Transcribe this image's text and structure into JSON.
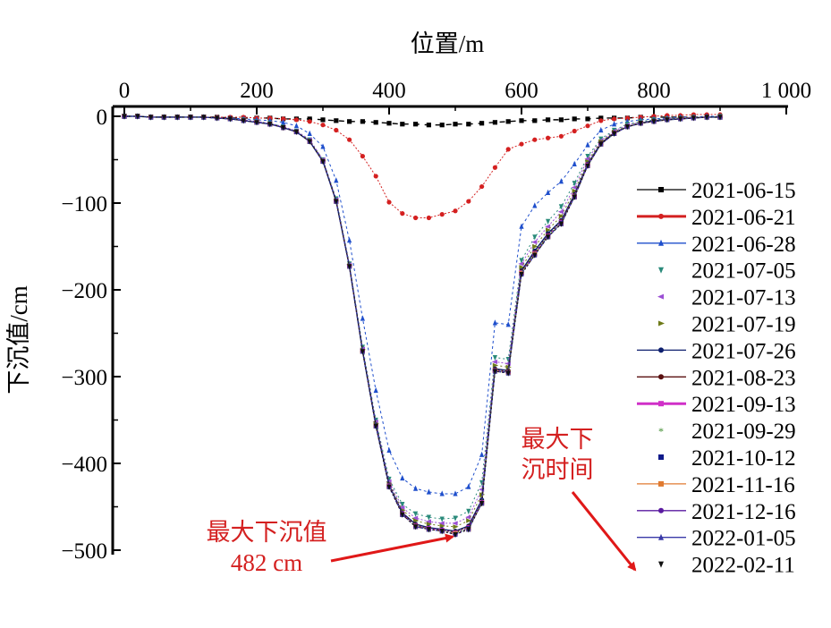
{
  "chart_data": {
    "type": "line",
    "title": "",
    "xlabel": "位置/m",
    "ylabel": "下沉值/cm",
    "xlim": [
      0,
      1000
    ],
    "ylim": [
      -500,
      0
    ],
    "xticks": [
      0,
      200,
      400,
      600,
      800,
      1000
    ],
    "xtick_labels": [
      "0",
      "200",
      "400",
      "600",
      "800",
      "1 000"
    ],
    "yticks": [
      0,
      -100,
      -200,
      -300,
      -400,
      -500
    ],
    "ytick_labels": [
      "0",
      "−100",
      "−200",
      "−300",
      "−400",
      "−500"
    ],
    "x_axis_position": "top",
    "grid": false,
    "legend_position": "right",
    "x": [
      0,
      20,
      40,
      60,
      80,
      100,
      120,
      140,
      160,
      180,
      200,
      220,
      240,
      260,
      280,
      300,
      320,
      340,
      360,
      380,
      400,
      420,
      440,
      460,
      480,
      500,
      520,
      540,
      560,
      580,
      600,
      620,
      640,
      660,
      680,
      700,
      720,
      740,
      760,
      780,
      800,
      820,
      840,
      860,
      880,
      900
    ],
    "series": [
      {
        "name": "2021-06-15",
        "color": "#000000",
        "marker": "square",
        "line": true,
        "values": [
          0,
          0,
          -1,
          -1,
          -1,
          -1,
          -1,
          -1,
          -2,
          -2,
          -2,
          -2,
          -3,
          -3,
          -3,
          -4,
          -5,
          -6,
          -6,
          -7,
          -8,
          -9,
          -9,
          -10,
          -10,
          -9,
          -9,
          -8,
          -7,
          -6,
          -5,
          -5,
          -4,
          -4,
          -3,
          -3,
          -2,
          -2,
          -2,
          -1,
          -1,
          -1,
          -1,
          -1,
          -1,
          -1
        ]
      },
      {
        "name": "2021-06-21",
        "color": "#d42020",
        "marker": "circle",
        "line": true,
        "values": [
          0,
          0,
          -1,
          -1,
          -1,
          -1,
          -1,
          -1,
          -1,
          -1,
          -2,
          -2,
          -3,
          -4,
          -6,
          -10,
          -16,
          -27,
          -46,
          -69,
          -99,
          -112,
          -117,
          -117,
          -113,
          -109,
          -98,
          -81,
          -59,
          -38,
          -32,
          -27,
          -25,
          -23,
          -17,
          -11,
          -5,
          -3,
          -2,
          -1,
          0,
          1,
          1,
          2,
          2,
          2
        ]
      },
      {
        "name": "2021-06-28",
        "color": "#1f4fcc",
        "marker": "triangle-up",
        "line": true,
        "values": [
          0,
          0,
          -1,
          -1,
          -1,
          -1,
          -1,
          -2,
          -2,
          -3,
          -4,
          -5,
          -7,
          -11,
          -20,
          -35,
          -74,
          -143,
          -233,
          -316,
          -385,
          -417,
          -429,
          -433,
          -435,
          -435,
          -427,
          -390,
          -238,
          -240,
          -127,
          -103,
          -88,
          -75,
          -55,
          -33,
          -16,
          -9,
          -6,
          -4,
          -3,
          -2,
          -1,
          -1,
          0,
          0
        ]
      },
      {
        "name": "2021-07-05",
        "color": "#2a8a7a",
        "marker": "triangle-down",
        "line": false,
        "values": [
          0,
          0,
          -1,
          -1,
          -1,
          -1,
          -1,
          -2,
          -3,
          -4,
          -6,
          -8,
          -12,
          -17,
          -27,
          -50,
          -95,
          -170,
          -266,
          -350,
          -418,
          -447,
          -458,
          -462,
          -464,
          -463,
          -455,
          -422,
          -278,
          -280,
          -166,
          -139,
          -121,
          -104,
          -77,
          -46,
          -26,
          -16,
          -9,
          -6,
          -4,
          -3,
          -2,
          -1,
          -1,
          0
        ]
      },
      {
        "name": "2021-07-13",
        "color": "#9b4fd4",
        "marker": "triangle-left",
        "line": false,
        "values": [
          0,
          0,
          -1,
          -1,
          -1,
          -1,
          -1,
          -2,
          -3,
          -4,
          -6,
          -8,
          -12,
          -17,
          -27,
          -50,
          -96,
          -171,
          -268,
          -352,
          -421,
          -451,
          -463,
          -467,
          -469,
          -469,
          -462,
          -430,
          -283,
          -285,
          -170,
          -145,
          -127,
          -110,
          -82,
          -49,
          -28,
          -17,
          -10,
          -7,
          -5,
          -3,
          -2,
          -1,
          -1,
          -1
        ]
      },
      {
        "name": "2021-07-19",
        "color": "#6e7a18",
        "marker": "triangle-right",
        "line": false,
        "values": [
          0,
          0,
          -1,
          -1,
          -1,
          -1,
          -1,
          -2,
          -3,
          -5,
          -7,
          -9,
          -13,
          -18,
          -28,
          -51,
          -97,
          -172,
          -269,
          -354,
          -423,
          -454,
          -466,
          -470,
          -472,
          -473,
          -466,
          -436,
          -287,
          -289,
          -174,
          -150,
          -131,
          -115,
          -86,
          -52,
          -29,
          -18,
          -11,
          -7,
          -5,
          -3,
          -2,
          -1,
          -1,
          -1
        ]
      },
      {
        "name": "2021-07-26",
        "color": "#0d1f6e",
        "marker": "circle",
        "line": true,
        "values": [
          0,
          0,
          -1,
          -1,
          -1,
          -1,
          -1,
          -2,
          -3,
          -5,
          -7,
          -9,
          -13,
          -18,
          -29,
          -52,
          -98,
          -173,
          -271,
          -356,
          -425,
          -457,
          -470,
          -474,
          -476,
          -478,
          -472,
          -442,
          -291,
          -293,
          -178,
          -155,
          -135,
          -120,
          -90,
          -55,
          -31,
          -19,
          -12,
          -8,
          -5,
          -4,
          -3,
          -2,
          -1,
          -1
        ]
      },
      {
        "name": "2021-08-23",
        "color": "#5a1010",
        "marker": "circle",
        "line": true,
        "values": [
          0,
          0,
          -1,
          -1,
          -1,
          -1,
          -1,
          -2,
          -3,
          -5,
          -7,
          -9,
          -13,
          -18,
          -29,
          -52,
          -98,
          -173,
          -271,
          -357,
          -426,
          -458,
          -471,
          -475,
          -477,
          -479,
          -473,
          -444,
          -292,
          -294,
          -179,
          -157,
          -137,
          -121,
          -91,
          -56,
          -31,
          -19,
          -12,
          -8,
          -6,
          -4,
          -3,
          -2,
          -1,
          -1
        ]
      },
      {
        "name": "2021-09-13",
        "color": "#d030c8",
        "marker": "square",
        "line": true,
        "values": [
          0,
          0,
          -1,
          -1,
          -1,
          -1,
          -1,
          -2,
          -3,
          -5,
          -7,
          -9,
          -13,
          -18,
          -29,
          -52,
          -98,
          -173,
          -271,
          -357,
          -426,
          -458,
          -472,
          -475,
          -477,
          -480,
          -474,
          -445,
          -293,
          -295,
          -180,
          -158,
          -138,
          -122,
          -92,
          -56,
          -32,
          -20,
          -12,
          -8,
          -6,
          -4,
          -3,
          -2,
          -1,
          -1
        ]
      },
      {
        "name": "2021-09-29",
        "color": "#3a8a2a",
        "marker": "star",
        "line": false,
        "values": [
          0,
          0,
          -1,
          -1,
          -1,
          -1,
          -1,
          -2,
          -3,
          -5,
          -7,
          -9,
          -13,
          -18,
          -29,
          -52,
          -98,
          -173,
          -271,
          -357,
          -427,
          -459,
          -472,
          -476,
          -478,
          -480,
          -475,
          -446,
          -293,
          -295,
          -180,
          -158,
          -138,
          -123,
          -92,
          -57,
          -32,
          -20,
          -12,
          -8,
          -6,
          -4,
          -3,
          -2,
          -1,
          -1
        ]
      },
      {
        "name": "2021-10-12",
        "color": "#101a8a",
        "marker": "square",
        "line": false,
        "values": [
          0,
          0,
          -1,
          -1,
          -1,
          -1,
          -1,
          -2,
          -3,
          -5,
          -7,
          -9,
          -13,
          -18,
          -29,
          -52,
          -98,
          -173,
          -271,
          -357,
          -427,
          -459,
          -473,
          -476,
          -478,
          -481,
          -475,
          -446,
          -293,
          -295,
          -181,
          -159,
          -139,
          -123,
          -93,
          -57,
          -32,
          -20,
          -12,
          -8,
          -6,
          -4,
          -3,
          -2,
          -1,
          -1
        ]
      },
      {
        "name": "2021-11-16",
        "color": "#e07a30",
        "marker": "square",
        "line": true,
        "values": [
          0,
          0,
          -1,
          -1,
          -1,
          -1,
          -1,
          -2,
          -3,
          -5,
          -7,
          -9,
          -13,
          -18,
          -29,
          -52,
          -98,
          -173,
          -271,
          -357,
          -427,
          -459,
          -473,
          -476,
          -478,
          -481,
          -476,
          -446,
          -293,
          -295,
          -181,
          -159,
          -139,
          -124,
          -93,
          -57,
          -32,
          -20,
          -12,
          -8,
          -6,
          -4,
          -3,
          -2,
          -1,
          -1
        ]
      },
      {
        "name": "2021-12-16",
        "color": "#5a1aa0",
        "marker": "circle",
        "line": true,
        "values": [
          0,
          0,
          -1,
          -1,
          -1,
          -1,
          -1,
          -2,
          -3,
          -5,
          -7,
          -9,
          -13,
          -18,
          -29,
          -52,
          -98,
          -173,
          -271,
          -357,
          -427,
          -459,
          -473,
          -476,
          -478,
          -482,
          -476,
          -446,
          -293,
          -295,
          -182,
          -160,
          -139,
          -124,
          -93,
          -57,
          -32,
          -20,
          -12,
          -8,
          -6,
          -4,
          -3,
          -2,
          -1,
          -1
        ]
      },
      {
        "name": "2022-01-05",
        "color": "#3a3aa8",
        "marker": "triangle-up",
        "line": true,
        "values": [
          0,
          0,
          -1,
          -1,
          -1,
          -1,
          -1,
          -2,
          -3,
          -5,
          -7,
          -9,
          -13,
          -18,
          -29,
          -52,
          -98,
          -173,
          -271,
          -357,
          -427,
          -459,
          -473,
          -476,
          -478,
          -482,
          -476,
          -446,
          -294,
          -296,
          -182,
          -160,
          -139,
          -124,
          -93,
          -57,
          -32,
          -20,
          -12,
          -8,
          -6,
          -4,
          -3,
          -2,
          -1,
          -1
        ]
      },
      {
        "name": "2022-02-11",
        "color": "#111111",
        "marker": "triangle-down",
        "line": false,
        "values": [
          0,
          0,
          -1,
          -1,
          -1,
          -1,
          -1,
          -2,
          -3,
          -5,
          -7,
          -9,
          -13,
          -18,
          -29,
          -52,
          -98,
          -173,
          -271,
          -357,
          -427,
          -459,
          -473,
          -476,
          -478,
          -482,
          -476,
          -446,
          -294,
          -296,
          -182,
          -160,
          -139,
          -124,
          -93,
          -57,
          -32,
          -20,
          -12,
          -8,
          -6,
          -4,
          -3,
          -2,
          -1,
          -1
        ]
      }
    ],
    "annotations": [
      {
        "text_lines": [
          "最大下沉值",
          "482 cm"
        ],
        "points_to": {
          "x": 500,
          "y": -482
        },
        "color": "#d42020"
      },
      {
        "text_lines": [
          "最大下",
          "沉时间"
        ],
        "points_to": "legend entry 2022-02-11",
        "color": "#d42020"
      }
    ]
  }
}
